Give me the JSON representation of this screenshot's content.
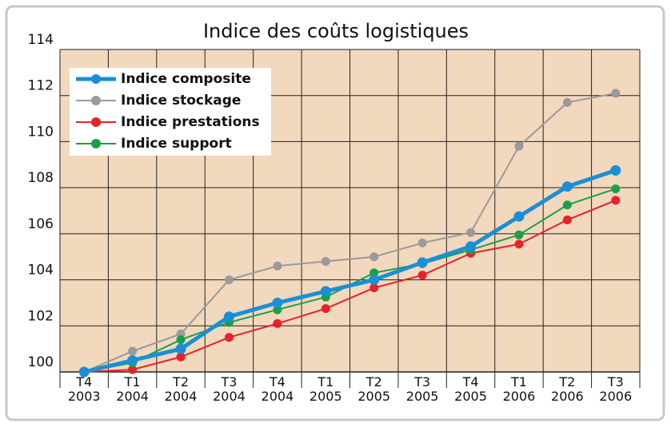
{
  "chart_data": {
    "type": "line",
    "title": "Indice des coûts logistiques",
    "categories": [
      "T4\n2003",
      "T1\n2004",
      "T2\n2004",
      "T3\n2004",
      "T4\n2004",
      "T1\n2005",
      "T2\n2005",
      "T3\n2005",
      "T4\n2005",
      "T1\n2006",
      "T2\n2006",
      "T3\n2006"
    ],
    "series": [
      {
        "name": "Indice composite",
        "color": "#1a8fd6",
        "values": [
          100,
          100.5,
          101.0,
          102.4,
          103.0,
          103.5,
          104.0,
          104.75,
          105.45,
          106.75,
          108.05,
          108.75
        ]
      },
      {
        "name": "Indice stockage",
        "color": "#9a9a9a",
        "values": [
          100,
          100.9,
          101.65,
          104.0,
          104.6,
          104.8,
          105.0,
          105.6,
          106.05,
          109.8,
          111.7,
          112.1
        ]
      },
      {
        "name": "Indice prestations",
        "color": "#e8212a",
        "values": [
          100,
          100.1,
          100.65,
          101.5,
          102.1,
          102.75,
          103.65,
          104.2,
          105.15,
          105.55,
          106.6,
          107.45
        ]
      },
      {
        "name": "Indice support",
        "color": "#1aa04a",
        "values": [
          100,
          100.4,
          101.4,
          102.15,
          102.7,
          103.25,
          104.3,
          104.7,
          105.3,
          105.95,
          107.25,
          107.95
        ]
      }
    ],
    "ylim": [
      100,
      114
    ],
    "yticks": [
      100,
      102,
      104,
      106,
      108,
      110,
      112,
      114
    ],
    "grid": true,
    "legend": "top-left"
  }
}
